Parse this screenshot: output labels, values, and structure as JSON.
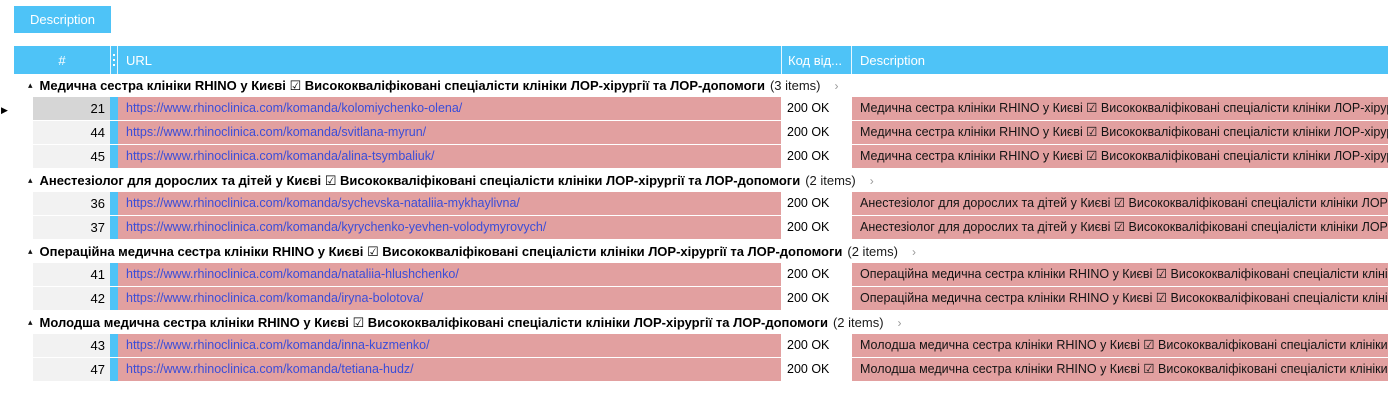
{
  "tab": {
    "label": "Description"
  },
  "columns": {
    "num": "#",
    "url": "URL",
    "code": "Код від...",
    "description": "Description"
  },
  "icons": {
    "collapse_caret": "▴",
    "group_chevron": "›",
    "current_row_marker": "▶",
    "checkbox_checked": "☑"
  },
  "colors": {
    "accent_blue": "#4ec3f7",
    "cell_pink": "#e2a0a0",
    "link_blue": "#3b4dd8",
    "num_cell_gray": "#f2f2f2",
    "num_cell_selected": "#d6d6d6"
  },
  "groups": [
    {
      "title": "Медична сестра клініки RHINO у Києві ☑ Висококваліфіковані спеціалісти клініки ЛОР-хірургії та ЛОР-допомоги",
      "count": "(3 items)",
      "rows": [
        {
          "num": "21",
          "url": "https://www.rhinoclinica.com/komanda/kolomiychenko-olena/",
          "code": "200 OK",
          "description": "Медична сестра клініки RHINO у Києві ☑ Висококваліфіковані спеціалісти клініки ЛОР-хірургії та ЛОР-допомоги",
          "selected": true
        },
        {
          "num": "44",
          "url": "https://www.rhinoclinica.com/komanda/svitlana-myrun/",
          "code": "200 OK",
          "description": "Медична сестра клініки RHINO у Києві ☑ Висококваліфіковані спеціалісти клініки ЛОР-хірургії та ЛОР-допомоги",
          "selected": false
        },
        {
          "num": "45",
          "url": "https://www.rhinoclinica.com/komanda/alina-tsymbaliuk/",
          "code": "200 OK",
          "description": "Медична сестра клініки RHINO у Києві ☑ Висококваліфіковані спеціалісти клініки ЛОР-хірургії та ЛОР-допомоги",
          "selected": false
        }
      ]
    },
    {
      "title": "Анестезіолог для дорослих та дітей у Києві ☑ Висококваліфіковані спеціалісти клініки ЛОР-хірургії та ЛОР-допомоги",
      "count": "(2 items)",
      "rows": [
        {
          "num": "36",
          "url": "https://www.rhinoclinica.com/komanda/sychevska-nataliia-mykhaylivna/",
          "code": "200 OK",
          "description": "Анестезіолог для дорослих та дітей у Києві ☑ Висококваліфіковані спеціалісти клініки ЛОР-хірургії та ЛОР-допомоги",
          "selected": false
        },
        {
          "num": "37",
          "url": "https://www.rhinoclinica.com/komanda/kyrychenko-yevhen-volodymyrovych/",
          "code": "200 OK",
          "description": "Анестезіолог для дорослих та дітей у Києві ☑ Висококваліфіковані спеціалісти клініки ЛОР-хірургії та ЛОР-допомоги",
          "selected": false
        }
      ]
    },
    {
      "title": "Операційна медична сестра клініки RHINO у Києві ☑ Висококваліфіковані спеціалісти клініки ЛОР-хірургії та ЛОР-допомоги",
      "count": "(2 items)",
      "rows": [
        {
          "num": "41",
          "url": "https://www.rhinoclinica.com/komanda/nataliia-hlushchenko/",
          "code": "200 OK",
          "description": "Операційна медична сестра клініки RHINO у Києві ☑ Висококваліфіковані спеціалісти клініки ЛОР-хірургії та ЛОР-допомоги",
          "selected": false
        },
        {
          "num": "42",
          "url": "https://www.rhinoclinica.com/komanda/iryna-bolotova/",
          "code": "200 OK",
          "description": "Операційна медична сестра клініки RHINO у Києві ☑ Висококваліфіковані спеціалісти клініки ЛОР-хірургії та ЛОР-допомоги",
          "selected": false
        }
      ]
    },
    {
      "title": "Молодша медична сестра клініки RHINO у Києві ☑ Висококваліфіковані спеціалісти клініки ЛОР-хірургії та ЛОР-допомоги",
      "count": "(2 items)",
      "rows": [
        {
          "num": "43",
          "url": "https://www.rhinoclinica.com/komanda/inna-kuzmenko/",
          "code": "200 OK",
          "description": "Молодша медична сестра клініки RHINO у Києві ☑ Висококваліфіковані спеціалісти клініки ЛОР-хірургії та ЛОР-допомоги",
          "selected": false
        },
        {
          "num": "47",
          "url": "https://www.rhinoclinica.com/komanda/tetiana-hudz/",
          "code": "200 OK",
          "description": "Молодша медична сестра клініки RHINO у Києві ☑ Висококваліфіковані спеціалісти клініки ЛОР-хірургії та ЛОР-допомоги",
          "selected": false
        }
      ]
    }
  ]
}
